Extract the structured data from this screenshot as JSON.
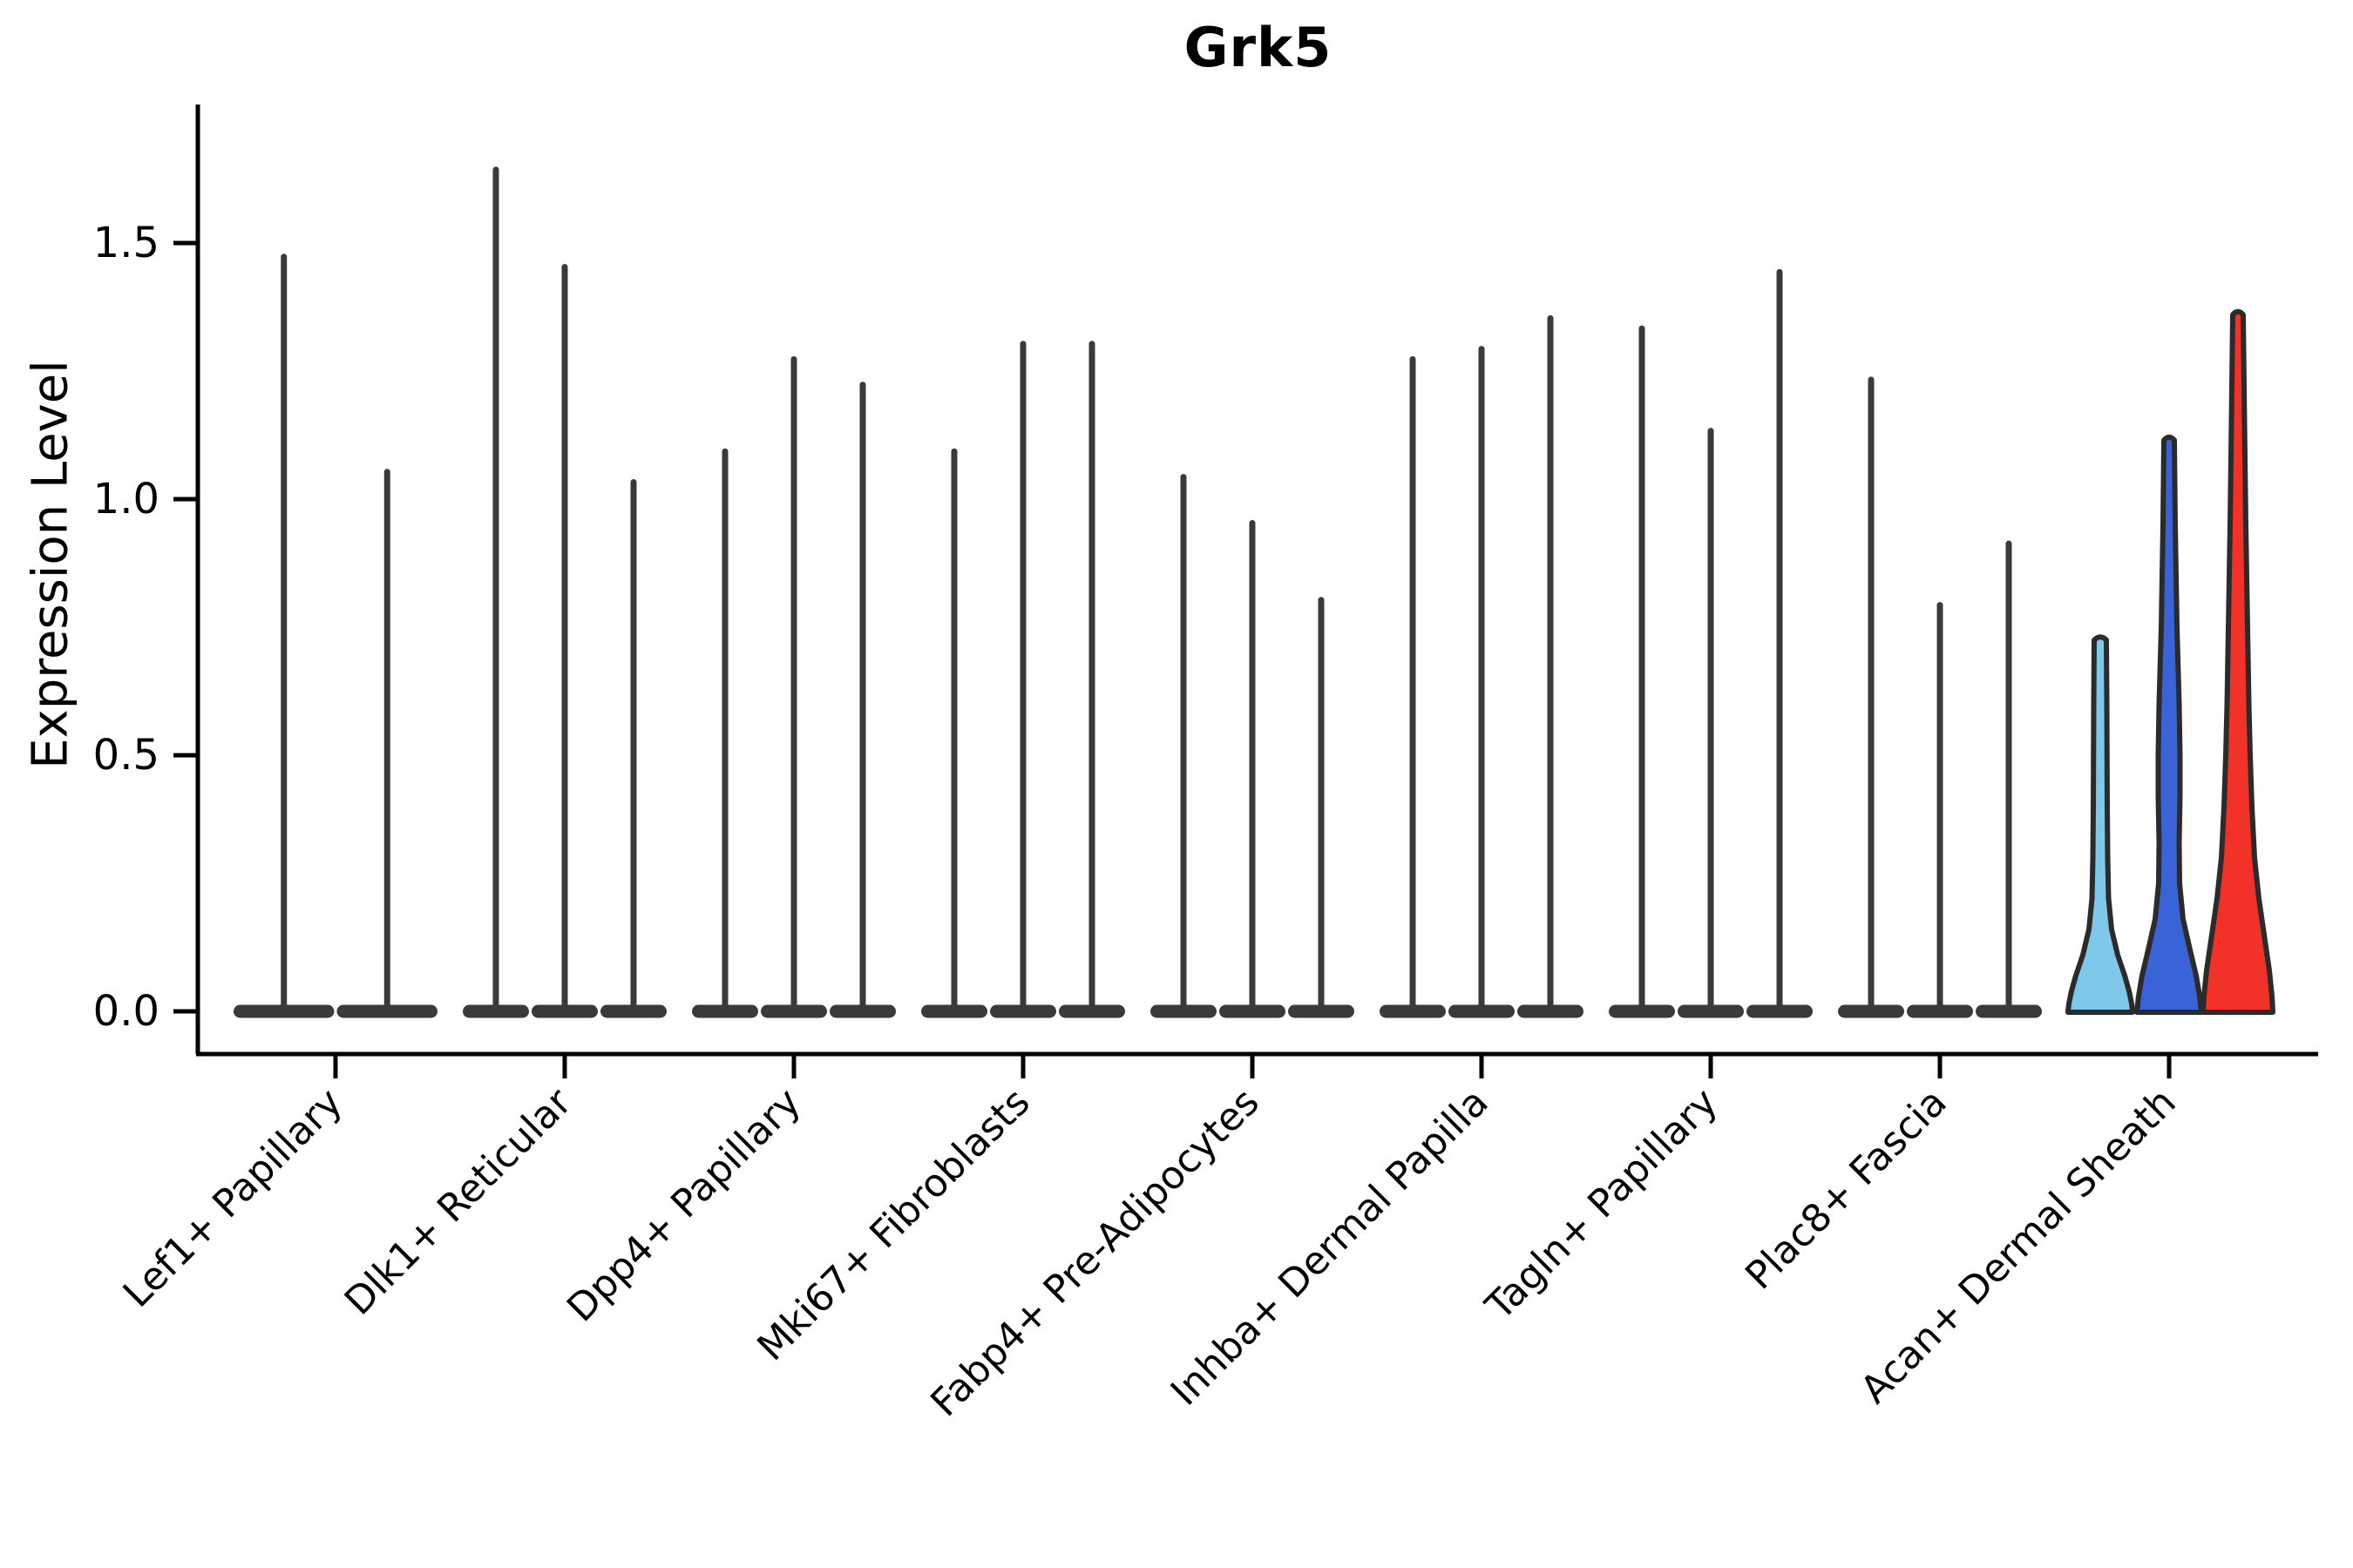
{
  "title": "Grk5",
  "y_axis_label": "Expression Level",
  "chart_data": {
    "type": "violin",
    "title": "Grk5",
    "ylabel": "Expression Level",
    "xlabel": "",
    "ytick_labels": [
      "0.0",
      "0.5",
      "1.0",
      "1.5"
    ],
    "ytick_values": [
      0.0,
      0.5,
      1.0,
      1.5
    ],
    "ylim": [
      -0.08,
      1.77
    ],
    "grid": false,
    "legend": "none",
    "default_violin_color": "#3a3a3a",
    "outline_color": "#2b2b2b",
    "axis_color": "#000000",
    "groups": [
      {
        "label": "Lef1+ Papillary",
        "violins": [
          {
            "peak": 1.48
          },
          {
            "peak": 1.06
          }
        ]
      },
      {
        "label": "Dlk1+ Reticular",
        "violins": [
          {
            "peak": 1.65
          },
          {
            "peak": 1.46
          },
          {
            "peak": 1.04
          }
        ]
      },
      {
        "label": "Dpp4+ Papillary",
        "violins": [
          {
            "peak": 1.1
          },
          {
            "peak": 1.28
          },
          {
            "peak": 1.23
          }
        ]
      },
      {
        "label": "Mki67+ Fibroblasts",
        "violins": [
          {
            "peak": 1.1
          },
          {
            "peak": 1.31
          },
          {
            "peak": 1.31
          }
        ]
      },
      {
        "label": "Fabp4+ Pre-Adipocytes",
        "violins": [
          {
            "peak": 1.05
          },
          {
            "peak": 0.96
          },
          {
            "peak": 0.81
          }
        ]
      },
      {
        "label": "Inhba+ Dermal Papilla",
        "violins": [
          {
            "peak": 1.28
          },
          {
            "peak": 1.3
          },
          {
            "peak": 1.36
          }
        ]
      },
      {
        "label": "Tagln+ Papillary",
        "violins": [
          {
            "peak": 1.34
          },
          {
            "peak": 1.14
          },
          {
            "peak": 1.45
          }
        ]
      },
      {
        "label": "Plac8+ Fascia",
        "violins": [
          {
            "peak": 1.24
          },
          {
            "peak": 0.8
          },
          {
            "peak": 0.92
          }
        ]
      },
      {
        "label": "Acan+ Dermal Sheath",
        "violins": [
          {
            "peak": 0.72,
            "color": "#7EC8EA",
            "profile": [
              [
                0.725,
                7
              ],
              [
                0.6,
                7.5
              ],
              [
                0.4,
                8
              ],
              [
                0.3,
                8.5
              ],
              [
                0.22,
                9.5
              ],
              [
                0.16,
                13
              ],
              [
                0.11,
                20
              ],
              [
                0.07,
                28
              ],
              [
                0.04,
                33
              ],
              [
                0.015,
                36
              ],
              [
                0.0,
                37
              ]
            ]
          },
          {
            "peak": 1.11,
            "color": "#3A63D8",
            "profile": [
              [
                1.115,
                6
              ],
              [
                0.95,
                7
              ],
              [
                0.75,
                9
              ],
              [
                0.6,
                11.5
              ],
              [
                0.5,
                12.5
              ],
              [
                0.42,
                12.5
              ],
              [
                0.33,
                11.5
              ],
              [
                0.25,
                12
              ],
              [
                0.18,
                16
              ],
              [
                0.12,
                24
              ],
              [
                0.07,
                31
              ],
              [
                0.03,
                35
              ],
              [
                0.0,
                37
              ]
            ]
          },
          {
            "peak": 1.36,
            "color": "#F23128",
            "profile": [
              [
                1.36,
                6
              ],
              [
                1.15,
                7.5
              ],
              [
                0.95,
                9
              ],
              [
                0.75,
                11
              ],
              [
                0.6,
                12.5
              ],
              [
                0.5,
                14
              ],
              [
                0.4,
                16
              ],
              [
                0.3,
                19
              ],
              [
                0.22,
                24
              ],
              [
                0.15,
                30
              ],
              [
                0.08,
                36
              ],
              [
                0.03,
                39
              ],
              [
                0.0,
                40
              ]
            ]
          }
        ]
      }
    ]
  }
}
